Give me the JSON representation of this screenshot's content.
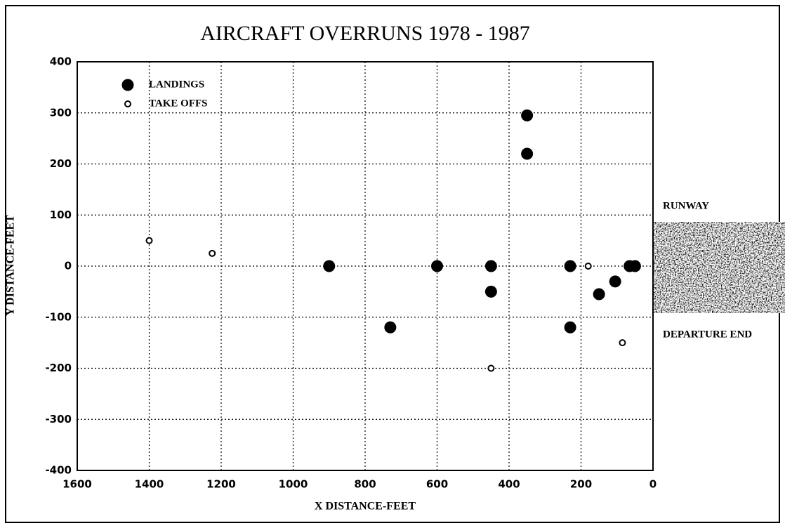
{
  "chart_data": {
    "type": "scatter",
    "title": "AIRCRAFT OVERRUNS  1978 - 1987",
    "xlabel": "X DISTANCE-FEET",
    "ylabel": "Y DISTANCE-FEET",
    "annotations": [
      "RUNWAY",
      "DEPARTURE END"
    ],
    "series": [
      {
        "name": "LANDINGS",
        "color": "#000000",
        "filled": true,
        "x": [
          900,
          730,
          600,
          450,
          450,
          350,
          350,
          230,
          230,
          150,
          105,
          65,
          50
        ],
        "y": [
          0,
          -120,
          0,
          0,
          -50,
          295,
          220,
          0,
          -120,
          -55,
          -30,
          0,
          0
        ]
      },
      {
        "name": "TAKE OFFS",
        "color": "#000000",
        "filled": false,
        "x": [
          1400,
          1225,
          450,
          180,
          85
        ],
        "y": [
          50,
          25,
          -200,
          0,
          -150
        ]
      }
    ],
    "xlim": [
      1600,
      0
    ],
    "xticks": [
      1600,
      1400,
      1200,
      1000,
      800,
      600,
      400,
      200,
      0
    ],
    "ylim": [
      -400,
      400
    ],
    "yticks": [
      -400,
      -300,
      -200,
      -100,
      0,
      100,
      200,
      300,
      400
    ],
    "grid": true,
    "legend": "upper left"
  }
}
